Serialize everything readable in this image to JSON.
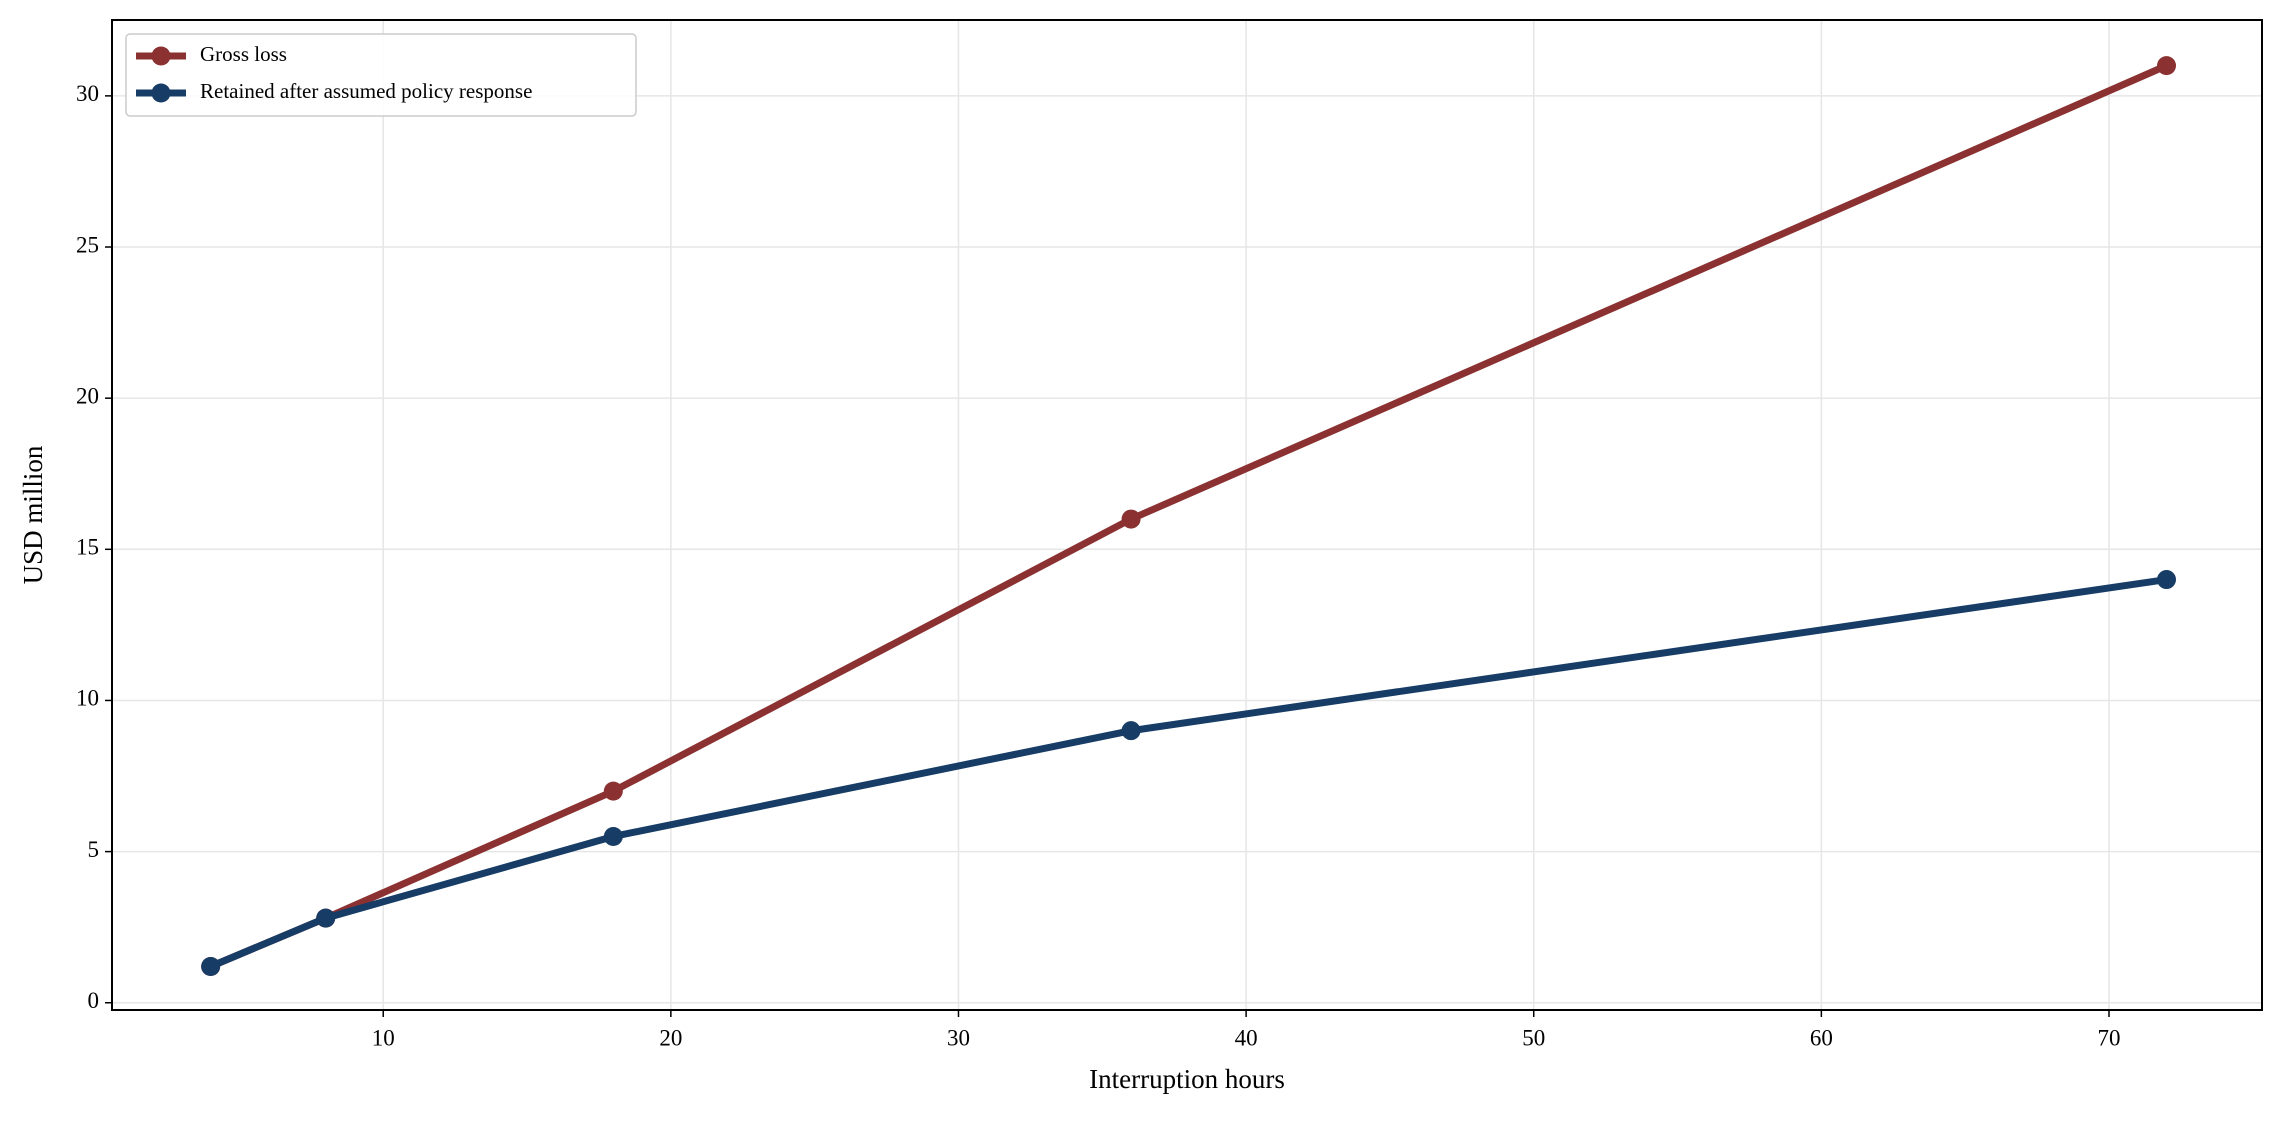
{
  "chart_data": {
    "type": "line",
    "xlabel": "Interruption hours",
    "ylabel": "USD million",
    "x": [
      4,
      8,
      18,
      36,
      72
    ],
    "series": [
      {
        "name": "Gross loss",
        "color": "#8b3131",
        "values": [
          1.2,
          2.8,
          7,
          16,
          31
        ]
      },
      {
        "name": "Retained after assumed policy response",
        "color": "#173c66",
        "values": [
          1.2,
          2.8,
          5.5,
          9,
          14
        ]
      }
    ],
    "xlim": [
      0.57,
      75.32
    ],
    "ylim": [
      -0.24,
      32.51
    ],
    "xticks": [
      10,
      20,
      30,
      40,
      50,
      60,
      70
    ],
    "yticks": [
      0,
      5,
      10,
      15,
      20,
      25,
      30
    ],
    "grid": true,
    "legend": "upper left"
  }
}
